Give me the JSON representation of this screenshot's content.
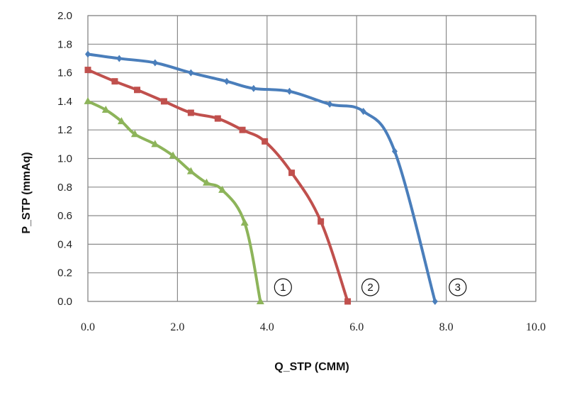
{
  "chart_data": {
    "type": "line",
    "xlabel": "Q_STP (CMM)",
    "ylabel": "P_STP (mmAq)",
    "xlim": [
      0,
      10
    ],
    "ylim": [
      0,
      2.0
    ],
    "x_ticks": [
      "0.0",
      "2.0",
      "4.0",
      "6.0",
      "8.0",
      "10.0"
    ],
    "y_ticks": [
      "0.0",
      "0.2",
      "0.4",
      "0.6",
      "0.8",
      "1.0",
      "1.2",
      "1.4",
      "1.6",
      "1.8",
      "2.0"
    ],
    "grid": true,
    "series": [
      {
        "label": "1",
        "color": "#8DB45A",
        "marker": "triangle",
        "points": [
          [
            0.0,
            1.4
          ],
          [
            0.4,
            1.34
          ],
          [
            0.75,
            1.26
          ],
          [
            1.05,
            1.17
          ],
          [
            1.5,
            1.1
          ],
          [
            1.9,
            1.02
          ],
          [
            2.3,
            0.91
          ],
          [
            2.65,
            0.83
          ],
          [
            3.0,
            0.78
          ],
          [
            3.5,
            0.55
          ],
          [
            3.85,
            0.0
          ]
        ]
      },
      {
        "label": "2",
        "color": "#C0504D",
        "marker": "square",
        "points": [
          [
            0.0,
            1.62
          ],
          [
            0.6,
            1.54
          ],
          [
            1.1,
            1.48
          ],
          [
            1.7,
            1.4
          ],
          [
            2.3,
            1.32
          ],
          [
            2.9,
            1.28
          ],
          [
            3.45,
            1.2
          ],
          [
            3.95,
            1.12
          ],
          [
            4.55,
            0.9
          ],
          [
            5.2,
            0.56
          ],
          [
            5.8,
            0.0
          ]
        ]
      },
      {
        "label": "3",
        "color": "#4A7EBB",
        "marker": "diamond",
        "points": [
          [
            0.0,
            1.73
          ],
          [
            0.7,
            1.7
          ],
          [
            1.5,
            1.67
          ],
          [
            2.3,
            1.6
          ],
          [
            3.1,
            1.54
          ],
          [
            3.7,
            1.49
          ],
          [
            4.5,
            1.47
          ],
          [
            5.4,
            1.38
          ],
          [
            6.15,
            1.33
          ],
          [
            6.85,
            1.05
          ],
          [
            7.75,
            0.0
          ]
        ]
      }
    ]
  }
}
